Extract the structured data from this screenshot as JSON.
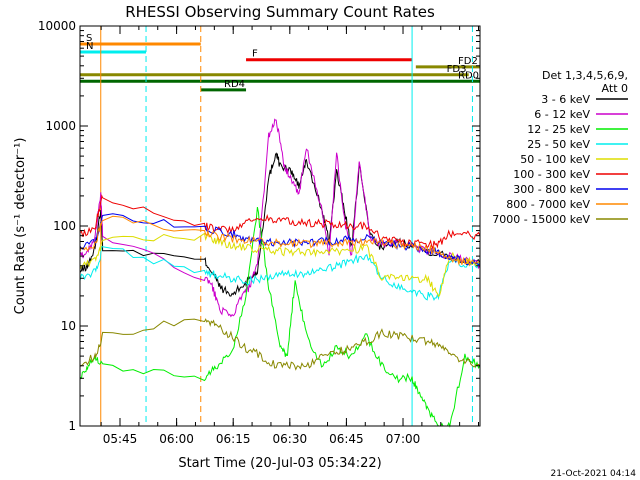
{
  "chart_data": {
    "type": "line",
    "title": "RHESSI Observing Summary Count Rates",
    "xlabel": "Start Time (20-Jul-03 05:34:22)",
    "ylabel": "Count Rate (s⁻¹ detector⁻¹)",
    "yscale": "log",
    "ylim": [
      1,
      10000
    ],
    "xlim_minutes_since_start": [
      0,
      106
    ],
    "x_tick_labels": [
      "05:45",
      "06:00",
      "06:15",
      "06:30",
      "06:45",
      "07:00"
    ],
    "x_tick_minutes": [
      10.6,
      25.6,
      40.6,
      55.6,
      70.6,
      85.6
    ],
    "y_tick_labels": [
      "1",
      "10",
      "100",
      "1000",
      "10000"
    ],
    "y_tick_values": [
      1,
      10,
      100,
      1000,
      10000
    ],
    "legend_header": [
      "Det 1,3,4,5,6,9,",
      "Att 0"
    ],
    "footer_date": "21-Oct-2021 04:14",
    "series": [
      {
        "name": "3 - 6 keV",
        "color": "#000000",
        "x": [
          0,
          2,
          4,
          5.5,
          6,
          33,
          35,
          37,
          40,
          43,
          45,
          47,
          50,
          52,
          53,
          56,
          58,
          60,
          64,
          66,
          68,
          70,
          72,
          74,
          77,
          80,
          84,
          88,
          93,
          98,
          102,
          106
        ],
        "y": [
          35,
          40,
          60,
          150,
          60,
          45,
          35,
          25,
          20,
          25,
          30,
          35,
          300,
          550,
          400,
          350,
          250,
          450,
          150,
          70,
          350,
          150,
          60,
          400,
          80,
          60,
          70,
          65,
          55,
          50,
          45,
          42
        ]
      },
      {
        "name": "6 - 12 keV",
        "color": "#cc00cc",
        "x": [
          0,
          2,
          4,
          5.5,
          6,
          33,
          35,
          37,
          40,
          43,
          45,
          47,
          50,
          52,
          54,
          56,
          58,
          60,
          64,
          66,
          68,
          70,
          72,
          74,
          77,
          80,
          84,
          88,
          93,
          98,
          102,
          106
        ],
        "y": [
          50,
          55,
          80,
          200,
          80,
          30,
          25,
          15,
          12,
          20,
          25,
          40,
          800,
          1200,
          400,
          300,
          200,
          600,
          150,
          50,
          550,
          120,
          50,
          450,
          75,
          65,
          70,
          62,
          55,
          50,
          45,
          40
        ]
      },
      {
        "name": "12 - 25 keV",
        "color": "#00ee00",
        "x": [
          0,
          2,
          4,
          6,
          33,
          36,
          40,
          44,
          47,
          50,
          53,
          55,
          57,
          60,
          64,
          68,
          72,
          76,
          80,
          84,
          88,
          90,
          92,
          95,
          98,
          102,
          106
        ],
        "y": [
          3,
          4,
          5,
          4,
          3,
          4,
          5,
          20,
          150,
          25,
          6,
          5,
          30,
          8,
          4,
          6,
          5,
          8,
          4,
          3,
          3,
          2,
          1.5,
          1,
          1,
          5,
          4
        ]
      },
      {
        "name": "25 - 50 keV",
        "color": "#00eeee",
        "x": [
          0,
          4,
          6,
          33,
          36,
          40,
          44,
          48,
          52,
          56,
          60,
          64,
          68,
          72,
          76,
          80,
          84,
          88,
          92,
          95,
          98,
          102,
          106
        ],
        "y": [
          30,
          35,
          60,
          35,
          32,
          30,
          28,
          30,
          32,
          33,
          34,
          35,
          40,
          45,
          50,
          30,
          25,
          22,
          20,
          20,
          45,
          42,
          40
        ]
      },
      {
        "name": "50 - 100 keV",
        "color": "#dddd00",
        "x": [
          0,
          4,
          6,
          33,
          36,
          40,
          44,
          48,
          52,
          56,
          60,
          64,
          68,
          72,
          76,
          80,
          84,
          88,
          92,
          95,
          98,
          102,
          106
        ],
        "y": [
          40,
          45,
          70,
          80,
          70,
          65,
          60,
          58,
          56,
          55,
          55,
          55,
          56,
          58,
          60,
          30,
          30,
          30,
          30,
          20,
          50,
          45,
          42
        ]
      },
      {
        "name": "100 - 300 keV",
        "color": "#ee0000",
        "x": [
          0,
          4,
          6,
          33,
          36,
          40,
          44,
          48,
          52,
          56,
          60,
          64,
          68,
          72,
          76,
          80,
          84,
          88,
          92,
          95,
          98,
          102,
          106
        ],
        "y": [
          80,
          100,
          200,
          100,
          95,
          90,
          110,
          120,
          115,
          110,
          108,
          106,
          104,
          102,
          100,
          75,
          70,
          68,
          66,
          65,
          85,
          82,
          80
        ]
      },
      {
        "name": "300 - 800 keV",
        "color": "#0000ee",
        "x": [
          0,
          4,
          6,
          33,
          36,
          40,
          44,
          48,
          52,
          56,
          60,
          64,
          68,
          72,
          76,
          80,
          84,
          88,
          92,
          95,
          98,
          102,
          106
        ],
        "y": [
          60,
          70,
          130,
          95,
          90,
          85,
          75,
          70,
          68,
          68,
          69,
          70,
          72,
          74,
          75,
          70,
          65,
          62,
          58,
          55,
          48,
          45,
          42
        ]
      },
      {
        "name": "800 - 7000 keV",
        "color": "#ff8800",
        "x": [
          0,
          4,
          6,
          33,
          36,
          40,
          44,
          48,
          52,
          56,
          60,
          64,
          68,
          72,
          76,
          80,
          84,
          88,
          92,
          95,
          98,
          102,
          106
        ],
        "y": [
          55,
          65,
          120,
          85,
          80,
          75,
          72,
          70,
          68,
          67,
          67,
          67,
          68,
          69,
          70,
          68,
          66,
          63,
          60,
          55,
          46,
          44,
          42
        ]
      },
      {
        "name": "7000 - 15000 keV",
        "color": "#888800",
        "x": [
          0,
          4,
          6,
          33,
          36,
          40,
          44,
          48,
          52,
          56,
          60,
          64,
          68,
          72,
          76,
          80,
          84,
          88,
          92,
          95,
          98,
          102,
          106
        ],
        "y": [
          4,
          5,
          8,
          12,
          10,
          8,
          6,
          5,
          4,
          4,
          4,
          5,
          5.5,
          6,
          7,
          8.5,
          8,
          7.5,
          7,
          6.5,
          5,
          4.5,
          4
        ]
      }
    ],
    "state_bars": [
      {
        "label": "S",
        "color": "#ff8800",
        "start": 0,
        "end": 32,
        "level": 6600
      },
      {
        "label": "N",
        "color": "#00eeee",
        "start": 0,
        "end": 17.5,
        "level": 5500
      },
      {
        "label": "F",
        "color": "#ee0000",
        "start": 44,
        "end": 88,
        "level": 4600
      },
      {
        "label": "FD2",
        "color": "#888800",
        "start": 89,
        "end": 106,
        "level": 3900
      },
      {
        "label": "FD3",
        "color": "#888800",
        "start": 0,
        "end": 103,
        "level": 3250
      },
      {
        "label": "RD0",
        "color": "#006600",
        "start": 0,
        "end": 106,
        "level": 2800
      },
      {
        "label": "RD4",
        "color": "#006600",
        "start": 32,
        "end": 44,
        "level": 2300
      }
    ],
    "markers": [
      {
        "color": "#00eeee",
        "style": "solid",
        "x": 0
      },
      {
        "color": "#ff8800",
        "style": "solid",
        "x": 5.5
      },
      {
        "color": "#00eeee",
        "style": "dashed",
        "x": 17.5
      },
      {
        "color": "#ff8800",
        "style": "dashed",
        "x": 32
      },
      {
        "color": "#00eeee",
        "style": "solid",
        "x": 88
      },
      {
        "color": "#00eeee",
        "style": "dashed",
        "x": 104
      }
    ]
  }
}
